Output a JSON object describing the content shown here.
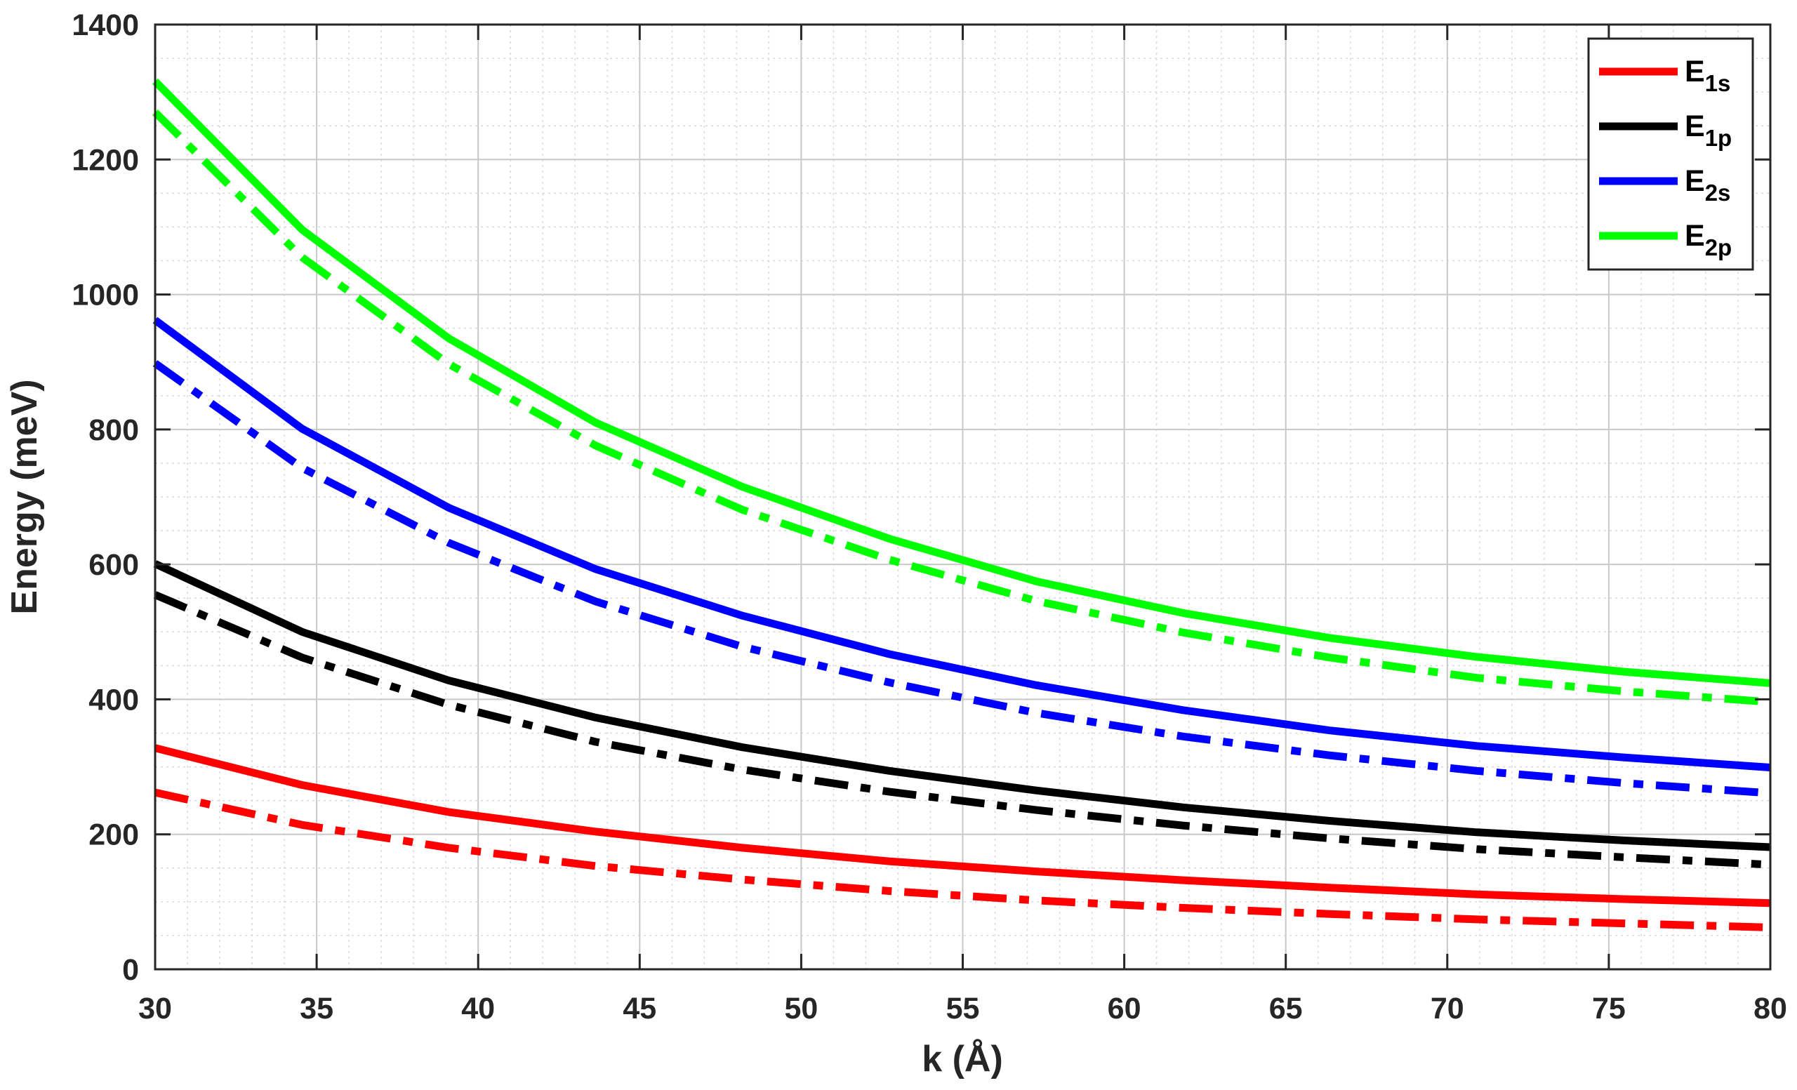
{
  "chart_data": {
    "type": "line",
    "xlabel": "k (Å)",
    "ylabel": "Energy (meV)",
    "xlim": [
      30,
      80
    ],
    "ylim": [
      0,
      1400
    ],
    "xticks": [
      30,
      35,
      40,
      45,
      50,
      55,
      60,
      65,
      70,
      75,
      80
    ],
    "yticks": [
      0,
      200,
      400,
      600,
      800,
      1000,
      1200,
      1400
    ],
    "grid": true,
    "minor_grid": true,
    "legend_position": "top-right",
    "x": [
      30,
      34.55,
      39.09,
      43.64,
      48.18,
      52.73,
      57.27,
      61.82,
      66.36,
      70.91,
      75.45,
      80
    ],
    "series": [
      {
        "name": "E1s",
        "legend_main": "E",
        "legend_sub": "1s",
        "color": "#ff0000",
        "style": "solid",
        "values": [
          328,
          273,
          233,
          204,
          180,
          160,
          145,
          132,
          121,
          111,
          104,
          98
        ]
      },
      {
        "name": "E1p",
        "legend_main": "E",
        "legend_sub": "1p",
        "color": "#000000",
        "style": "solid",
        "values": [
          601,
          500,
          428,
          373,
          329,
          294,
          265,
          240,
          220,
          203,
          191,
          181
        ]
      },
      {
        "name": "E2s",
        "legend_main": "E",
        "legend_sub": "2s",
        "color": "#0000ff",
        "style": "solid",
        "values": [
          962,
          801,
          684,
          593,
          524,
          467,
          421,
          384,
          354,
          331,
          314,
          299
        ]
      },
      {
        "name": "E2p",
        "legend_main": "E",
        "legend_sub": "2p",
        "color": "#00ff00",
        "style": "solid",
        "values": [
          1316,
          1096,
          935,
          810,
          715,
          638,
          575,
          528,
          491,
          463,
          441,
          424
        ]
      },
      {
        "color": "#ff0000",
        "style": "dashdot",
        "values": [
          262,
          214,
          180,
          153,
          133,
          116,
          102,
          91,
          82,
          74,
          68,
          62
        ]
      },
      {
        "color": "#000000",
        "style": "dashdot",
        "values": [
          555,
          462,
          392,
          337,
          296,
          263,
          236,
          213,
          194,
          178,
          166,
          155
        ]
      },
      {
        "color": "#0000ff",
        "style": "dashdot",
        "values": [
          898,
          743,
          632,
          545,
          478,
          425,
          380,
          345,
          317,
          294,
          276,
          261
        ]
      },
      {
        "color": "#00ff00",
        "style": "dashdot",
        "values": [
          1270,
          1055,
          897,
          776,
          681,
          607,
          546,
          499,
          462,
          432,
          412,
          396
        ]
      }
    ]
  }
}
